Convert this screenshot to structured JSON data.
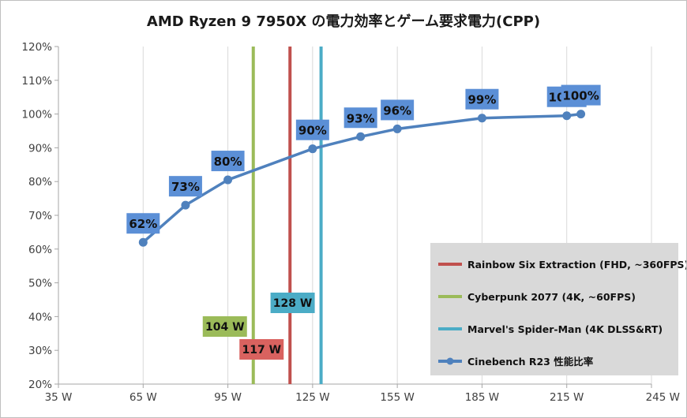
{
  "chart_data": {
    "type": "line",
    "title": "AMD Ryzen 9 7950X の電力効率とゲーム要求電力(CPP)",
    "xlabel": "",
    "ylabel": "",
    "xlim": [
      35,
      245
    ],
    "ylim": [
      20,
      120
    ],
    "x_ticks": [
      "35 W",
      "65 W",
      "95 W",
      "125 W",
      "155 W",
      "185 W",
      "215 W",
      "245 W"
    ],
    "x_tick_values": [
      35,
      65,
      95,
      125,
      155,
      185,
      215,
      245
    ],
    "y_ticks": [
      "20%",
      "30%",
      "40%",
      "50%",
      "60%",
      "70%",
      "80%",
      "90%",
      "100%",
      "110%",
      "120%"
    ],
    "y_tick_values": [
      20,
      30,
      40,
      50,
      60,
      70,
      80,
      90,
      100,
      110,
      120
    ],
    "grid": "vertical",
    "legend_position": "right-bottom",
    "series": [
      {
        "name": "Cinebench R23 性能比率",
        "color": "#4f81bd",
        "x": [
          65,
          80,
          95,
          125,
          142,
          155,
          185,
          215,
          220
        ],
        "y": [
          62,
          73,
          80.5,
          89.7,
          93.3,
          95.6,
          98.8,
          99.5,
          100
        ],
        "labels": [
          "62%",
          "73%",
          "80%",
          "90%",
          "93%",
          "96%",
          "99%",
          "100%",
          "100%"
        ]
      }
    ],
    "reference_lines": [
      {
        "name": "Rainbow Six Extraction (FHD, ~360FPS)",
        "x": 117,
        "label": "117 W",
        "color": "#c0504d",
        "label_color": "#d9625f"
      },
      {
        "name": "Cyberpunk 2077 (4K, ~60FPS)",
        "x": 104,
        "label": "104 W",
        "color": "#9bbb59",
        "label_color": "#9bbb59"
      },
      {
        "name": "Marvel's Spider-Man (4K DLSS&RT)",
        "x": 128,
        "label": "128 W",
        "color": "#4bacc6",
        "label_color": "#4bacc6"
      }
    ],
    "label_box_color": "#5b8fd6",
    "legend_background": "#d9d9d9",
    "gridline_color": "#d9d9d9"
  }
}
